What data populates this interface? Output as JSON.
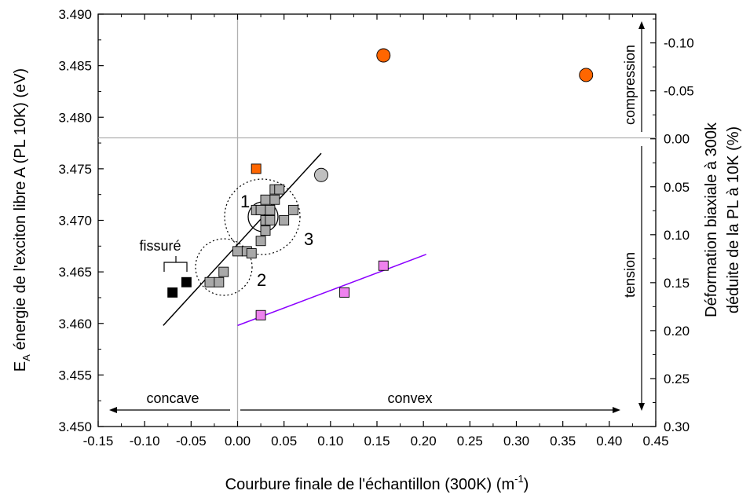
{
  "chart_data": {
    "type": "scatter",
    "xlabel": "Courbure finale de l'échantillon (300K)  (m",
    "xlabel_sup": "-1",
    "xlabel_end": ")",
    "ylabel_main": "E",
    "ylabel_sub": "A",
    "ylabel_rest": " énergie de l'exciton libre A (PL 10K)  (eV)",
    "y2label_line1": "Déformation biaxiale à 300k",
    "y2label_line2": "déduite de la PL à 10K (%)",
    "xlim": [
      -0.15,
      0.45
    ],
    "ylim": [
      3.45,
      3.49
    ],
    "y2lim": [
      0.3,
      -0.13
    ],
    "x_ticks": [
      -0.15,
      -0.1,
      -0.05,
      0.0,
      0.05,
      0.1,
      0.15,
      0.2,
      0.25,
      0.3,
      0.35,
      0.4,
      0.45
    ],
    "x_tick_labels": [
      "-0.15",
      "-0.10",
      "-0.05",
      "0.00",
      "0.05",
      "0.10",
      "0.15",
      "0.20",
      "0.25",
      "0.30",
      "0.35",
      "0.40",
      "0.45"
    ],
    "y_ticks": [
      3.45,
      3.455,
      3.46,
      3.465,
      3.47,
      3.475,
      3.48,
      3.485,
      3.49
    ],
    "y_tick_labels": [
      "3.450",
      "3.455",
      "3.460",
      "3.465",
      "3.470",
      "3.475",
      "3.480",
      "3.485",
      "3.490"
    ],
    "y2_ticks": [
      0.3,
      0.25,
      0.2,
      0.15,
      0.1,
      0.05,
      0.0,
      -0.05,
      -0.1
    ],
    "y2_tick_labels": [
      "0.30",
      "0.25",
      "0.20",
      "0.15",
      "0.10",
      "0.05",
      "0.00",
      "-0.05",
      "-0.10"
    ],
    "reference_lines": {
      "x": 0.0,
      "y": 3.478
    },
    "series": [
      {
        "marker": "square",
        "color": "#a9a9a9",
        "points": [
          [
            -0.03,
            3.464
          ],
          [
            -0.02,
            3.464
          ],
          [
            -0.015,
            3.465
          ],
          [
            0.0,
            3.467
          ],
          [
            0.01,
            3.467
          ],
          [
            0.015,
            3.4668
          ],
          [
            0.02,
            3.471
          ],
          [
            0.025,
            3.471
          ],
          [
            0.03,
            3.472
          ],
          [
            0.035,
            3.471
          ],
          [
            0.04,
            3.472
          ],
          [
            0.04,
            3.473
          ],
          [
            0.045,
            3.473
          ],
          [
            0.03,
            3.47
          ],
          [
            0.03,
            3.469
          ],
          [
            0.025,
            3.468
          ],
          [
            0.035,
            3.47
          ],
          [
            0.05,
            3.47
          ],
          [
            0.06,
            3.471
          ]
        ]
      },
      {
        "marker": "square",
        "color": "#000000",
        "points": [
          [
            -0.07,
            3.463
          ],
          [
            -0.055,
            3.464
          ]
        ]
      },
      {
        "marker": "square",
        "color": "#ff6600",
        "points": [
          [
            0.02,
            3.475
          ]
        ]
      },
      {
        "marker": "square",
        "color": "#ee82ee",
        "points": [
          [
            0.025,
            3.4608
          ],
          [
            0.115,
            3.463
          ],
          [
            0.157,
            3.4656
          ]
        ]
      },
      {
        "marker": "circle",
        "color": "#c0c0c0",
        "points": [
          [
            0.09,
            3.4744
          ]
        ]
      },
      {
        "marker": "circle",
        "color": "#ff6600",
        "points": [
          [
            0.157,
            3.486
          ],
          [
            0.375,
            3.4841
          ]
        ]
      }
    ],
    "fit_lines": [
      {
        "color": "#000000",
        "points": [
          [
            -0.08,
            3.4598
          ],
          [
            0.09,
            3.4765
          ]
        ]
      },
      {
        "color": "#8b00ff",
        "points": [
          [
            0.0,
            3.4598
          ],
          [
            0.203,
            3.4667
          ]
        ]
      }
    ],
    "annotations": {
      "label_1": "1",
      "label_2": "2",
      "label_3": "3",
      "fissure": "fissuré",
      "concave": "concave",
      "convex": "convex",
      "compression": "compression",
      "tension": "tension"
    }
  }
}
